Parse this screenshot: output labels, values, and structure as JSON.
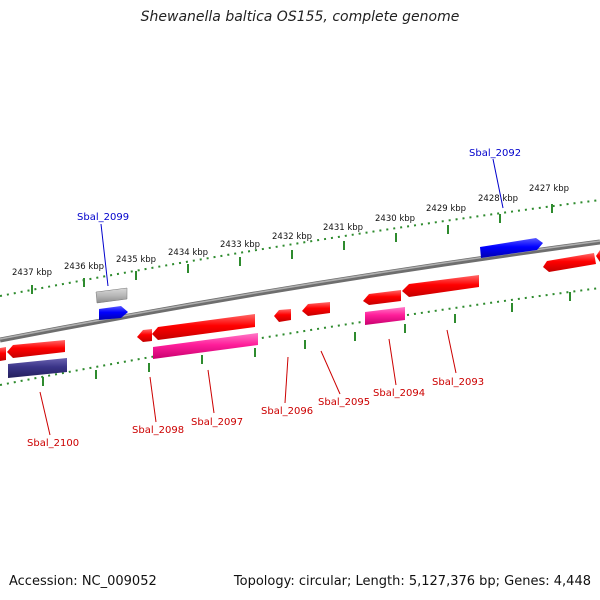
{
  "title": "Shewanella baltica OS155, complete genome",
  "accession": "Accession: NC_009052",
  "summary": "Topology: circular; Length: 5,127,376 bp; Genes: 4,448",
  "colors": {
    "backbone": "#8a8a8a",
    "tick": "#2e8b2e",
    "label_forward": "#0000cc",
    "label_reverse": "#cc0000"
  },
  "ticks": [
    {
      "label": "2437 kbp"
    },
    {
      "label": "2436 kbp"
    },
    {
      "label": "2435 kbp"
    },
    {
      "label": "2434 kbp"
    },
    {
      "label": "2433 kbp"
    },
    {
      "label": "2432 kbp"
    },
    {
      "label": "2431 kbp"
    },
    {
      "label": "2430 kbp"
    },
    {
      "label": "2429 kbp"
    },
    {
      "label": "2428 kbp"
    },
    {
      "label": "2427 kbp"
    }
  ],
  "gene_labels": [
    {
      "name": "Sbal_2092",
      "strand": "forward"
    },
    {
      "name": "Sbal_2099",
      "strand": "forward"
    },
    {
      "name": "Sbal_2093",
      "strand": "reverse"
    },
    {
      "name": "Sbal_2094",
      "strand": "reverse"
    },
    {
      "name": "Sbal_2095",
      "strand": "reverse"
    },
    {
      "name": "Sbal_2096",
      "strand": "reverse"
    },
    {
      "name": "Sbal_2097",
      "strand": "reverse"
    },
    {
      "name": "Sbal_2098",
      "strand": "reverse"
    },
    {
      "name": "Sbal_2100",
      "strand": "reverse"
    }
  ]
}
